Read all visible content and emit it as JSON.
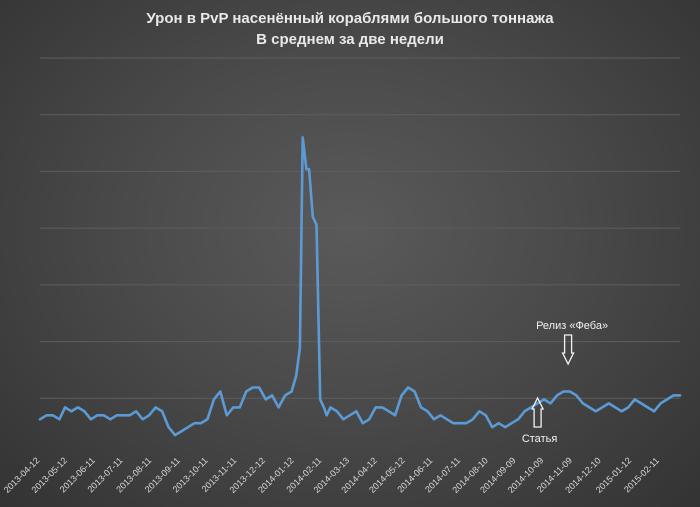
{
  "colors": {
    "line": "#5b9bd5",
    "background": "#4a4a4a",
    "grid": "#5e5e5e",
    "text": "#e9e9e9"
  },
  "chart_data": {
    "type": "line",
    "title": "Урон в PvP насенённый кораблями большого тоннажа",
    "subtitle": "В среднем за две недели",
    "xlabel": "",
    "ylabel": "",
    "grid": true,
    "ylim": [
      0,
      100
    ],
    "y_ticks_visible": false,
    "x_ticks": [
      "2013-04-12",
      "2013-05-12",
      "2013-06-11",
      "2013-07-11",
      "2013-08-11",
      "2013-09-11",
      "2013-10-11",
      "2013-11-11",
      "2013-12-12",
      "2014-01-12",
      "2014-02-11",
      "2014-03-13",
      "2014-04-12",
      "2014-05-12",
      "2014-06-11",
      "2014-07-11",
      "2014-08-10",
      "2014-09-09",
      "2014-10-09",
      "2014-11-09",
      "2014-12-10",
      "2015-01-12",
      "2015-02-11"
    ],
    "x_range": [
      "2013-04-12",
      "2015-03-05"
    ],
    "series": [
      {
        "x": [
          "2013-04-12",
          "2013-04-19",
          "2013-04-26",
          "2013-05-03",
          "2013-05-09",
          "2013-05-16",
          "2013-05-23",
          "2013-05-30",
          "2013-06-06",
          "2013-06-13",
          "2013-06-20",
          "2013-06-27",
          "2013-07-04",
          "2013-07-11",
          "2013-07-18",
          "2013-07-25",
          "2013-08-01",
          "2013-08-08",
          "2013-08-15",
          "2013-08-22",
          "2013-08-29",
          "2013-09-05",
          "2013-09-12",
          "2013-09-19",
          "2013-09-26",
          "2013-10-03",
          "2013-10-10",
          "2013-10-17",
          "2013-10-24",
          "2013-10-31",
          "2013-11-07",
          "2013-11-14",
          "2013-11-21",
          "2013-11-28",
          "2013-12-05",
          "2013-12-12",
          "2013-12-19",
          "2013-12-26",
          "2014-01-02",
          "2014-01-09",
          "2014-01-14",
          "2014-01-18",
          "2014-01-21",
          "2014-01-25",
          "2014-01-28",
          "2014-02-01",
          "2014-02-05",
          "2014-02-09",
          "2014-02-13",
          "2014-02-16",
          "2014-02-20",
          "2014-02-27",
          "2014-03-06",
          "2014-03-13",
          "2014-03-20",
          "2014-03-27",
          "2014-04-03",
          "2014-04-10",
          "2014-04-17",
          "2014-04-24",
          "2014-05-01",
          "2014-05-08",
          "2014-05-15",
          "2014-05-22",
          "2014-05-29",
          "2014-06-05",
          "2014-06-12",
          "2014-06-19",
          "2014-06-26",
          "2014-07-03",
          "2014-07-10",
          "2014-07-17",
          "2014-07-24",
          "2014-07-31",
          "2014-08-07",
          "2014-08-14",
          "2014-08-21",
          "2014-08-28",
          "2014-09-04",
          "2014-09-11",
          "2014-09-18",
          "2014-09-25",
          "2014-10-02",
          "2014-10-09",
          "2014-10-16",
          "2014-10-23",
          "2014-10-30",
          "2014-11-06",
          "2014-11-13",
          "2014-11-20",
          "2014-11-27",
          "2014-12-04",
          "2014-12-11",
          "2014-12-18",
          "2014-12-25",
          "2015-01-01",
          "2015-01-08",
          "2015-01-15",
          "2015-01-22",
          "2015-01-29",
          "2015-02-05",
          "2015-02-12",
          "2015-02-19",
          "2015-02-26",
          "2015-03-05"
        ],
        "y": [
          9,
          10,
          10,
          9,
          12,
          11,
          12,
          11,
          9,
          10,
          10,
          9,
          10,
          10,
          10,
          11,
          9,
          10,
          12,
          11,
          7,
          5,
          6,
          7,
          8,
          8,
          9,
          14,
          16,
          10,
          12,
          12,
          16,
          17,
          17,
          14,
          15,
          12,
          15,
          16,
          20,
          27,
          80,
          72,
          72,
          60,
          58,
          14,
          12,
          10,
          12,
          11,
          9,
          10,
          11,
          8,
          9,
          12,
          12,
          11,
          10,
          15,
          17,
          16,
          12,
          11,
          9,
          10,
          9,
          8,
          8,
          8,
          9,
          11,
          10,
          7,
          8,
          7,
          8,
          9,
          11,
          12,
          13,
          14,
          13,
          15,
          16,
          16,
          15,
          13,
          12,
          11,
          12,
          13,
          12,
          11,
          12,
          14,
          13,
          12,
          11,
          13,
          14,
          15,
          15
        ]
      }
    ],
    "annotations": [
      {
        "text": "Статья",
        "x": "2014-10-02",
        "direction": "up"
      },
      {
        "text": "Релиз «Феба»",
        "x": "2014-11-04",
        "direction": "down"
      }
    ]
  }
}
